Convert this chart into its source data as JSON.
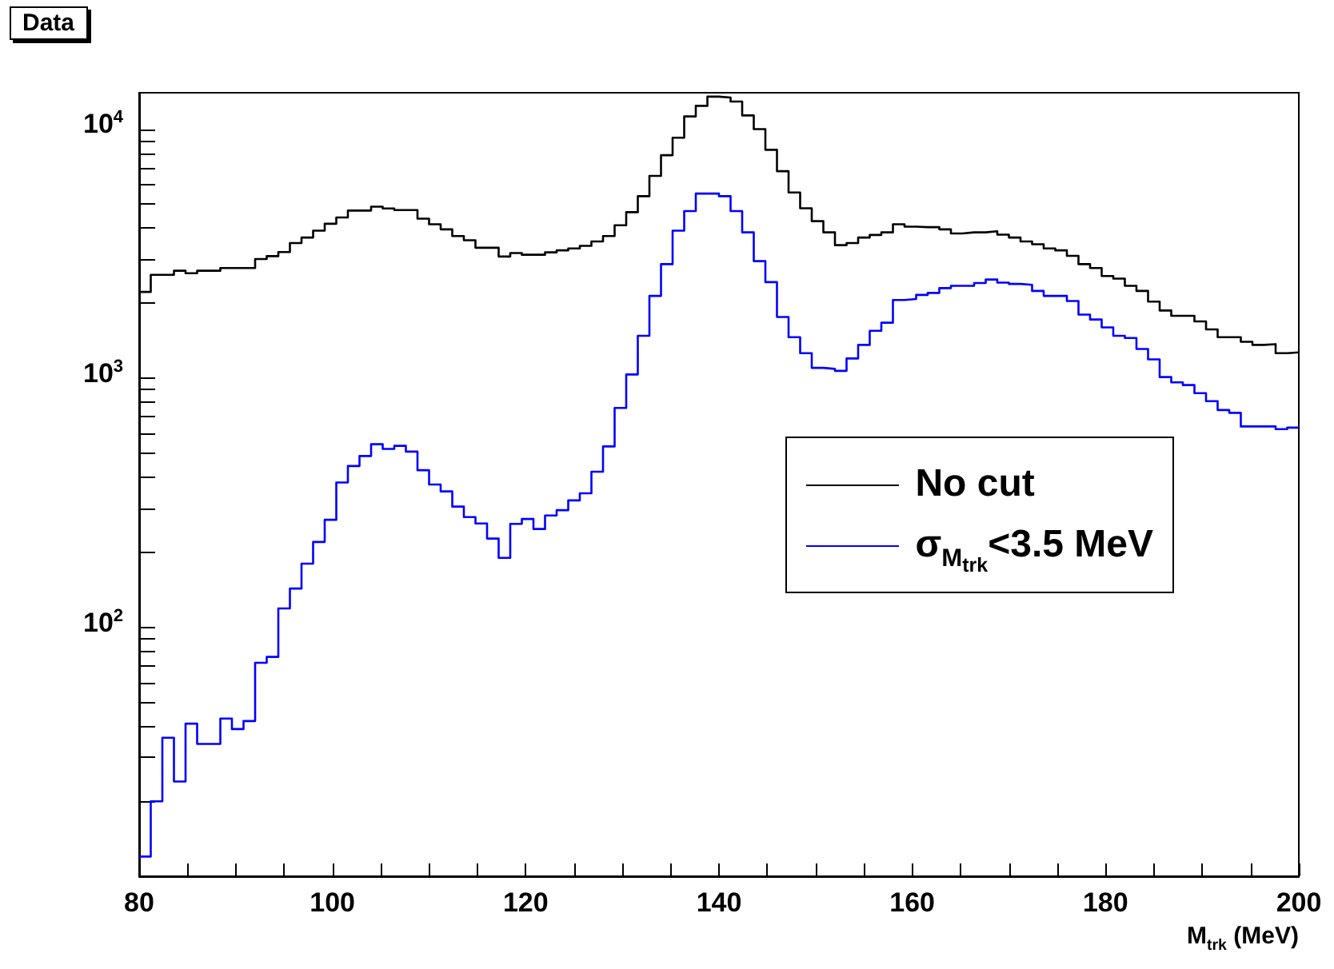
{
  "chart_data": {
    "type": "histogram",
    "title": "Data",
    "xlabel": "M$_{trk}$ (MeV)",
    "bins": [
      80,
      81.2,
      82.4,
      83.6,
      84.8,
      86,
      87.2,
      88.4,
      89.6,
      90.8,
      92,
      93.2,
      94.4,
      95.6,
      96.8,
      98,
      99.2,
      100.4,
      101.6,
      102.8,
      104,
      105.2,
      106.4,
      107.6,
      108.8,
      110,
      111.2,
      112.4,
      113.6,
      114.8,
      116,
      117.2,
      118.4,
      119.6,
      120.8,
      122,
      123.2,
      124.4,
      125.6,
      126.8,
      128,
      129.2,
      130.4,
      131.6,
      132.8,
      134,
      135.2,
      136.4,
      137.6,
      138.8,
      140,
      141.2,
      142.4,
      143.6,
      144.8,
      146,
      147.2,
      148.4,
      149.6,
      150.8,
      152,
      153.2,
      154.4,
      155.6,
      156.8,
      158,
      159.2,
      160.4,
      161.6,
      162.8,
      164,
      165.2,
      166.4,
      167.6,
      168.8,
      170,
      171.2,
      172.4,
      173.6,
      174.8,
      176,
      177.2,
      178.4,
      179.6,
      180.8,
      182,
      183.2,
      184.4,
      185.6,
      186.8,
      188,
      189.2,
      190.4,
      191.6,
      192.8,
      194,
      195.2,
      196.4,
      197.6,
      198.8,
      200
    ],
    "series": [
      {
        "name": "No cut",
        "color": "#000000",
        "values": [
          2220,
          2600,
          2600,
          2700,
          2640,
          2700,
          2700,
          2770,
          2770,
          2770,
          3010,
          3090,
          3210,
          3490,
          3670,
          3910,
          4170,
          4420,
          4710,
          4710,
          4880,
          4800,
          4730,
          4730,
          4370,
          4150,
          3960,
          3720,
          3580,
          3340,
          3340,
          3080,
          3180,
          3130,
          3130,
          3200,
          3260,
          3320,
          3400,
          3540,
          3720,
          4110,
          4640,
          5380,
          6490,
          7860,
          9240,
          11250,
          12400,
          13500,
          13400,
          12900,
          11350,
          10000,
          8260,
          6780,
          5570,
          4810,
          4270,
          3850,
          3420,
          3490,
          3670,
          3760,
          3850,
          4150,
          4060,
          4040,
          4040,
          3960,
          3810,
          3850,
          3850,
          3890,
          3770,
          3670,
          3540,
          3450,
          3320,
          3260,
          3100,
          2870,
          2770,
          2570,
          2510,
          2350,
          2240,
          2030,
          1870,
          1780,
          1780,
          1690,
          1570,
          1460,
          1460,
          1400,
          1360,
          1370,
          1260,
          1270
        ]
      },
      {
        "name": "σ$_{M}$$_{trk}$<3.5 MeV",
        "color": "#0000ff",
        "values": [
          12,
          20,
          36,
          24,
          41,
          34,
          34,
          43,
          39,
          42,
          72,
          76,
          119,
          143,
          180,
          220,
          270,
          381,
          444,
          487,
          543,
          520,
          535,
          507,
          427,
          374,
          351,
          305,
          277,
          261,
          227,
          190,
          260,
          272,
          248,
          281,
          295,
          323,
          345,
          421,
          532,
          759,
          1035,
          1480,
          2140,
          2870,
          3910,
          4690,
          5510,
          5510,
          5380,
          4690,
          3850,
          2950,
          2430,
          1760,
          1460,
          1260,
          1100,
          1090,
          1070,
          1200,
          1360,
          1550,
          1670,
          2060,
          2080,
          2160,
          2200,
          2300,
          2350,
          2350,
          2410,
          2490,
          2420,
          2390,
          2370,
          2240,
          2140,
          2140,
          2040,
          1800,
          1720,
          1600,
          1480,
          1450,
          1310,
          1190,
          1010,
          962,
          938,
          871,
          809,
          745,
          726,
          640,
          640,
          640,
          624,
          633
        ]
      }
    ],
    "xlim": [
      80,
      200
    ],
    "xticks": [
      80,
      {
        "value": 85,
        "label": null
      },
      {
        "value": 90,
        "label": null
      },
      {
        "value": 95,
        "label": null
      },
      100,
      {
        "value": 105,
        "label": null
      },
      {
        "value": 110,
        "label": null
      },
      {
        "value": 115,
        "label": null
      },
      120,
      {
        "value": 125,
        "label": null
      },
      {
        "value": 130,
        "label": null
      },
      {
        "value": 135,
        "label": null
      },
      140,
      {
        "value": 145,
        "label": null
      },
      {
        "value": 150,
        "label": null
      },
      {
        "value": 155,
        "label": null
      },
      160,
      {
        "value": 165,
        "label": null
      },
      {
        "value": 170,
        "label": null
      },
      {
        "value": 175,
        "label": null
      },
      180,
      {
        "value": 185,
        "label": null
      },
      {
        "value": 190,
        "label": null
      },
      {
        "value": 195,
        "label": null
      },
      200
    ],
    "ylim": [
      10,
      14000
    ],
    "log": true,
    "yticks": [
      {
        "value": 20,
        "label": null
      },
      {
        "value": 30,
        "label": null
      },
      {
        "value": 40,
        "label": null
      },
      {
        "value": 50,
        "label": null
      },
      {
        "value": 60,
        "label": null
      },
      {
        "value": 70,
        "label": null
      },
      {
        "value": 80,
        "label": null
      },
      {
        "value": 90,
        "label": null
      },
      {
        "value": 100,
        "label": "10$^{2}$"
      },
      {
        "value": 200,
        "label": null
      },
      {
        "value": 300,
        "label": null
      },
      {
        "value": 400,
        "label": null
      },
      {
        "value": 500,
        "label": null
      },
      {
        "value": 600,
        "label": null
      },
      {
        "value": 700,
        "label": null
      },
      {
        "value": 800,
        "label": null
      },
      {
        "value": 900,
        "label": null
      },
      {
        "value": 1000,
        "label": "10$^{3}$"
      },
      {
        "value": 2000,
        "label": null
      },
      {
        "value": 3000,
        "label": null
      },
      {
        "value": 4000,
        "label": null
      },
      {
        "value": 5000,
        "label": null
      },
      {
        "value": 6000,
        "label": null
      },
      {
        "value": 7000,
        "label": null
      },
      {
        "value": 8000,
        "label": null
      },
      {
        "value": 9000,
        "label": null
      },
      {
        "value": 10000,
        "label": "10$^{4}$"
      }
    ],
    "grid": false,
    "legend": "right"
  }
}
